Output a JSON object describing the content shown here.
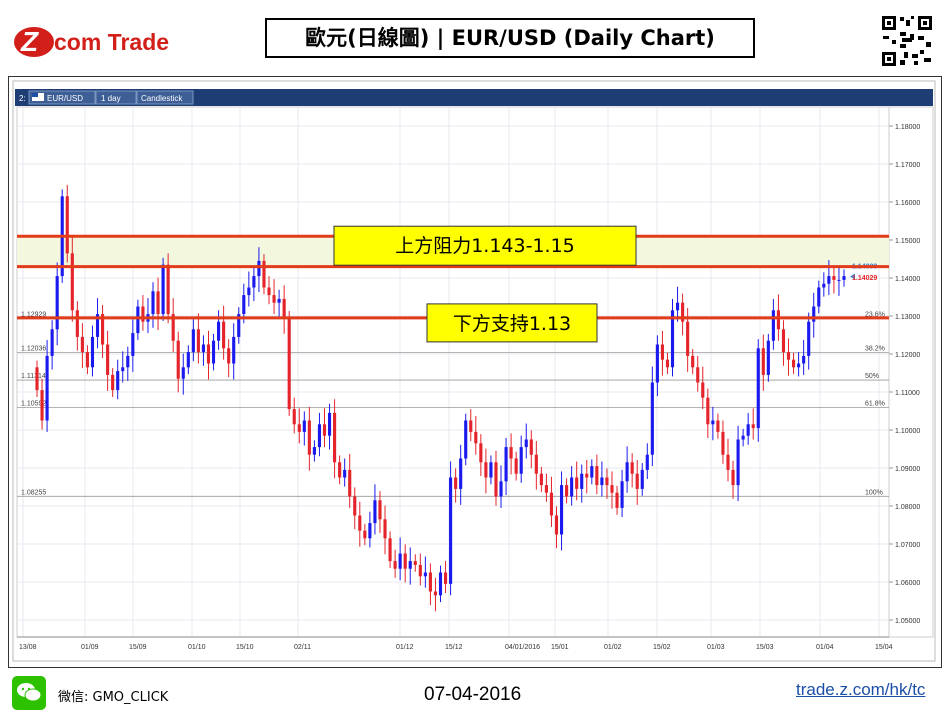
{
  "header": {
    "brand": "Z.com Trade",
    "brand_prefix": "com Trade",
    "title": "歐元(日線圖) | EUR/USD  (Daily Chart)"
  },
  "toolbar": {
    "index": "2:",
    "symbol": "EUR/USD",
    "interval": "1 day",
    "chart_style": "Candlestick"
  },
  "footer": {
    "wechat_label": "微信: GMO_CLICK",
    "date": "07-04-2016",
    "site": "trade.z.com/hk/tc"
  },
  "colors": {
    "up": "#1a1aee",
    "down": "#e4242a",
    "sr_line": "#e23b19",
    "zone_fill": "#f2f7dd",
    "label_fill": "#ffff00"
  },
  "chart_data": {
    "type": "candlestick",
    "ylim": [
      1.045,
      1.183
    ],
    "yticks": [
      "1.18000",
      "1.17000",
      "1.16000",
      "1.15000",
      "1.14000",
      "1.13000",
      "1.12000",
      "1.11000",
      "1.10000",
      "1.09000",
      "1.08000",
      "1.07000",
      "1.06000",
      "1.05000"
    ],
    "xticks": [
      "13/08",
      "01/09",
      "15/09",
      "01/10",
      "15/10",
      "02/11",
      "01/12",
      "15/12",
      "04/01/2016",
      "15/01",
      "01/02",
      "15/02",
      "01/03",
      "15/03",
      "01/04",
      "15/04"
    ],
    "resistance_zone": {
      "label": "上方阻力1.143-1.15",
      "low": 1.143,
      "high": 1.151
    },
    "support": {
      "label": "下方支持1.13",
      "value": 1.1295
    },
    "fib_levels": [
      {
        "value": 1.12929,
        "left_label": "1.12929",
        "right_label": "23.6%"
      },
      {
        "value": 1.12036,
        "left_label": "1.12036",
        "right_label": "38.2%"
      },
      {
        "value": 1.11314,
        "left_label": "1.11314",
        "right_label": "50%"
      },
      {
        "value": 1.10592,
        "left_label": "1.10592",
        "right_label": "61.8%"
      },
      {
        "value": 1.08255,
        "left_label": "1.08255",
        "right_label": "100%"
      }
    ],
    "last_price_tags": [
      "1.14039",
      "1.14029"
    ],
    "closes": [
      1.1105,
      1.1025,
      1.1195,
      1.1265,
      1.1405,
      1.1615,
      1.1465,
      1.1315,
      1.1245,
      1.1205,
      1.1165,
      1.1245,
      1.1305,
      1.1225,
      1.1145,
      1.1105,
      1.1155,
      1.1165,
      1.1195,
      1.1255,
      1.1325,
      1.1285,
      1.1305,
      1.1365,
      1.1305,
      1.1435,
      1.1305,
      1.1235,
      1.1135,
      1.1165,
      1.1205,
      1.1265,
      1.1205,
      1.1225,
      1.1175,
      1.1235,
      1.1285,
      1.1215,
      1.1175,
      1.1245,
      1.1305,
      1.1355,
      1.1375,
      1.1405,
      1.1445,
      1.1375,
      1.1355,
      1.1335,
      1.1345,
      1.1295,
      1.1055,
      1.1015,
      1.0995,
      1.1025,
      1.0935,
      1.0955,
      1.1015,
      1.0985,
      1.1045,
      1.0915,
      1.0875,
      1.0895,
      1.0825,
      1.0775,
      1.0735,
      1.0715,
      1.0755,
      1.0815,
      1.0765,
      1.0715,
      1.0655,
      1.0635,
      1.0675,
      1.0635,
      1.0655,
      1.0645,
      1.0615,
      1.0625,
      1.0575,
      1.0565,
      1.0625,
      1.0595,
      1.0875,
      1.0845,
      1.0925,
      1.1025,
      1.0995,
      1.0965,
      1.0915,
      1.0875,
      1.0915,
      1.0825,
      1.0865,
      1.0955,
      1.0925,
      1.0885,
      1.0955,
      1.0975,
      1.0935,
      1.0885,
      1.0855,
      1.0835,
      1.0775,
      1.0725,
      1.0855,
      1.0825,
      1.0875,
      1.0845,
      1.0885,
      1.0875,
      1.0905,
      1.0855,
      1.0875,
      1.0855,
      1.0835,
      1.0795,
      1.0865,
      1.0915,
      1.0885,
      1.0845,
      1.0895,
      1.0935,
      1.1125,
      1.1225,
      1.1185,
      1.1165,
      1.1315,
      1.1335,
      1.1285,
      1.1195,
      1.1165,
      1.1125,
      1.1085,
      1.1015,
      1.1025,
      1.0995,
      1.0935,
      1.0895,
      1.0855,
      1.0975,
      1.0985,
      1.1015,
      1.1005,
      1.1215,
      1.1145,
      1.1235,
      1.1315,
      1.1265,
      1.1205,
      1.1185,
      1.1165,
      1.1175,
      1.1195,
      1.1285,
      1.1325,
      1.1375,
      1.1385,
      1.1405,
      1.1395,
      1.1395,
      1.1405
    ]
  }
}
